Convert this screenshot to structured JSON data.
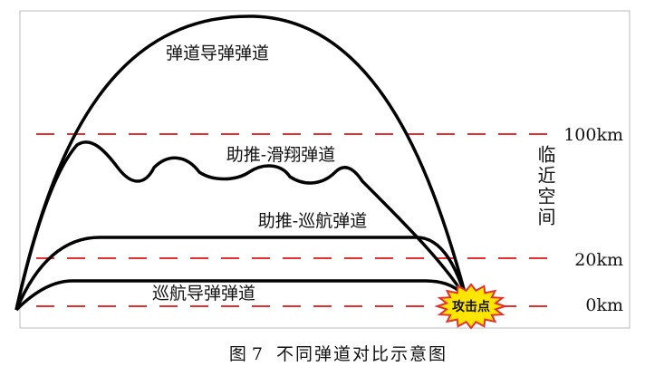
{
  "trajectories": {
    "ballistic": "弹道导弹弹道",
    "boost_glide": "助推-滑翔弹道",
    "boost_cruise": "助推-巡航弹道",
    "cruise": "巡航导弹弹道"
  },
  "altitudes": [
    "100km",
    "20km",
    "0km"
  ],
  "near_space": "临近空间",
  "target": "攻击点",
  "caption": {
    "number": "图 7",
    "text": "不同弹道对比示意图"
  }
}
